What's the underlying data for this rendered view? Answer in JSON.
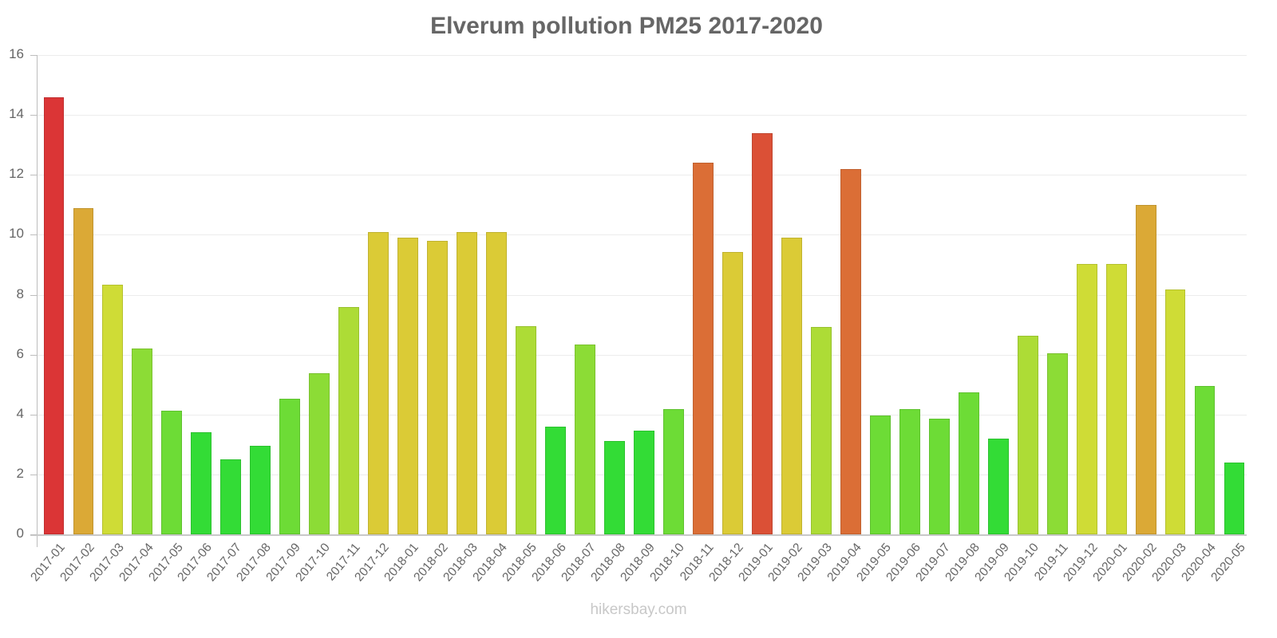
{
  "chart_data": {
    "type": "bar",
    "title": "Elverum pollution PM25 2017-2020",
    "xlabel": "",
    "ylabel": "",
    "ylim": [
      0,
      16
    ],
    "yticks": [
      0,
      2,
      4,
      6,
      8,
      10,
      12,
      14,
      16
    ],
    "grid": true,
    "legend": null,
    "categories": [
      "2017-01",
      "2017-02",
      "2017-03",
      "2017-04",
      "2017-05",
      "2017-06",
      "2017-07",
      "2017-08",
      "2017-09",
      "2017-10",
      "2017-11",
      "2017-12",
      "2018-01",
      "2018-02",
      "2018-03",
      "2018-04",
      "2018-05",
      "2018-06",
      "2018-07",
      "2018-08",
      "2018-09",
      "2018-10",
      "2018-11",
      "2018-12",
      "2019-01",
      "2019-02",
      "2019-03",
      "2019-04",
      "2019-05",
      "2019-06",
      "2019-07",
      "2019-08",
      "2019-09",
      "2019-10",
      "2019-11",
      "2019-12",
      "2020-01",
      "2020-02",
      "2020-03",
      "2020-04",
      "2020-05"
    ],
    "values": [
      14.6,
      10.9,
      8.33,
      6.2,
      4.13,
      3.41,
      2.5,
      2.96,
      4.53,
      5.38,
      7.59,
      10.1,
      9.9,
      9.8,
      10.1,
      10.1,
      6.95,
      3.6,
      6.34,
      3.12,
      3.46,
      4.18,
      12.4,
      9.42,
      13.4,
      9.9,
      6.92,
      12.2,
      3.97,
      4.18,
      3.86,
      4.74,
      3.2,
      6.63,
      6.04,
      9.03,
      9.03,
      11.0,
      8.17,
      4.95,
      2.4
    ],
    "colors": [
      "#db3536",
      "#dba936",
      "#cfdc36",
      "#8cdc36",
      "#6ddc36",
      "#33dc36",
      "#33dc36",
      "#33dc36",
      "#6ddc36",
      "#8cdc36",
      "#addc36",
      "#dbcb36",
      "#dbcb36",
      "#dbcb36",
      "#dbcb36",
      "#dbcb36",
      "#addc36",
      "#33dc36",
      "#8cdc36",
      "#33dc36",
      "#33dc36",
      "#6ddc36",
      "#db6e36",
      "#dbcb36",
      "#db5036",
      "#dbcb36",
      "#addc36",
      "#db6e36",
      "#6ddc36",
      "#6ddc36",
      "#6ddc36",
      "#6ddc36",
      "#33dc36",
      "#addc36",
      "#8cdc36",
      "#cfdc36",
      "#cfdc36",
      "#dba936",
      "#cfdc36",
      "#6ddc36",
      "#33dc36"
    ]
  },
  "watermark": "hikersbay.com"
}
